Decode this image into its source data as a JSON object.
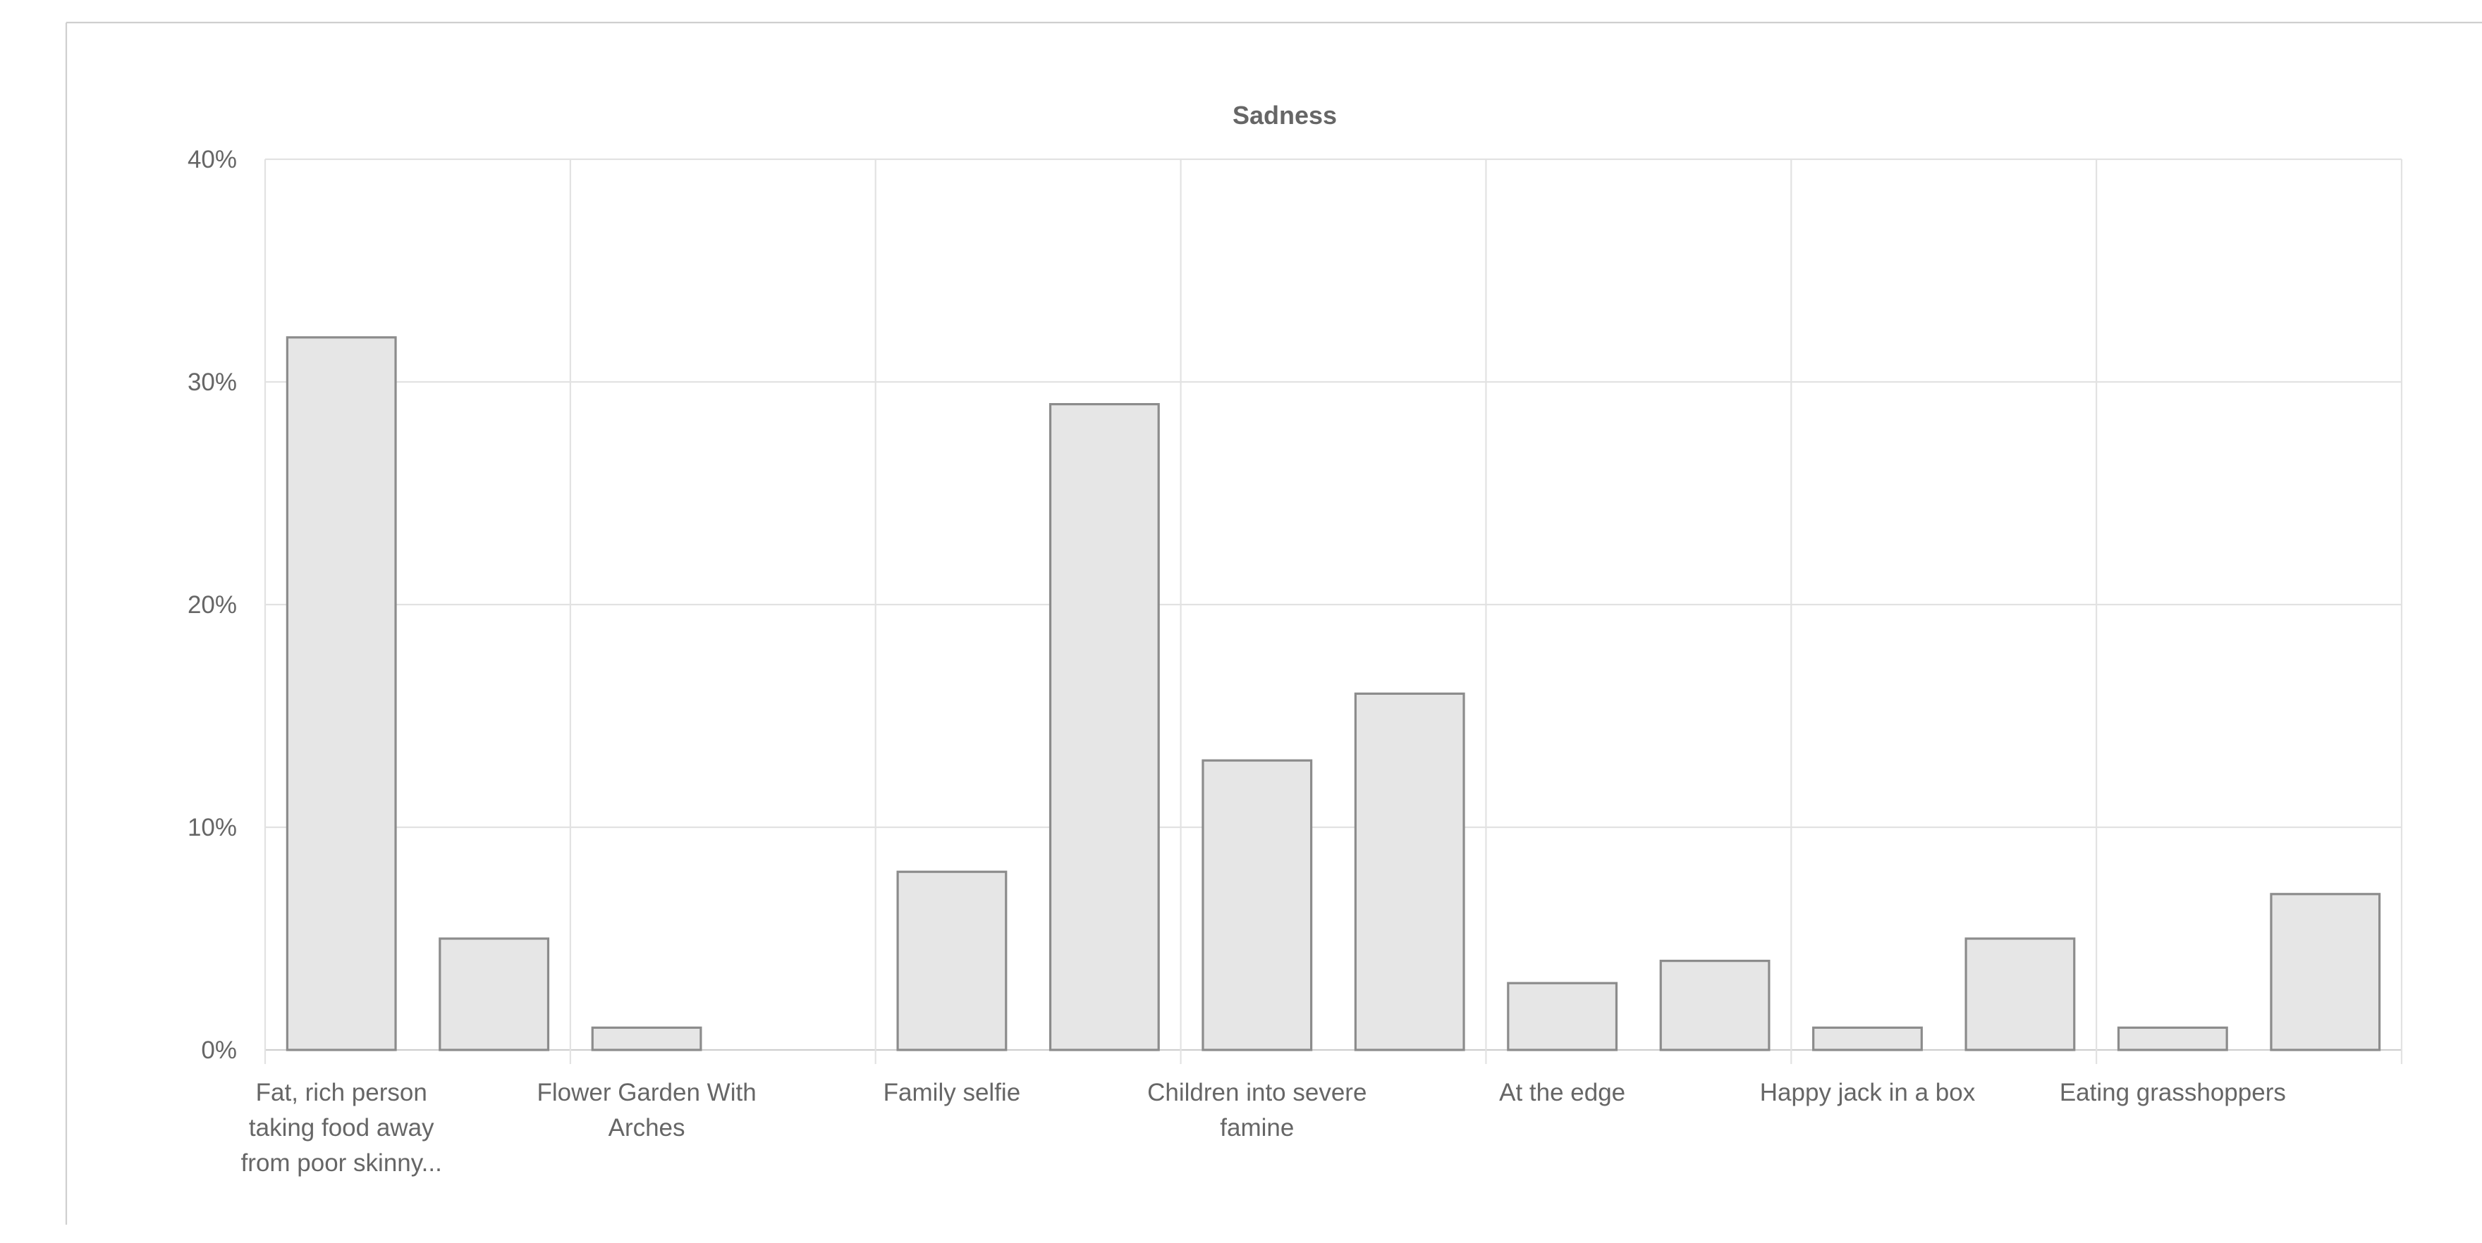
{
  "chart_data": {
    "type": "bar",
    "title": "Sadness",
    "xlabel": "",
    "ylabel": "",
    "ylim": [
      0,
      40
    ],
    "y_ticks": [
      "0%",
      "10%",
      "20%",
      "30%",
      "40%"
    ],
    "y_tick_values": [
      0,
      10,
      20,
      30,
      40
    ],
    "grid": true,
    "legend": "none",
    "bar_fill": "#e6e6e6",
    "bar_stroke": "#8c8c8c",
    "categories": [
      "Fat, rich person taking food away from poor skinny...",
      "",
      "Flower Garden With Arches",
      "",
      "Family selfie",
      "",
      "Children into severe famine",
      "",
      "At the edge",
      "",
      "Happy jack in a box",
      "",
      "Eating grasshoppers",
      ""
    ],
    "x_tick_labels": [
      {
        "index": 0,
        "lines": [
          "Fat, rich person",
          "taking food away",
          "from poor skinny..."
        ]
      },
      {
        "index": 2,
        "lines": [
          "Flower Garden With",
          "Arches"
        ]
      },
      {
        "index": 4,
        "lines": [
          "Family selfie"
        ]
      },
      {
        "index": 6,
        "lines": [
          "Children into severe",
          "famine"
        ]
      },
      {
        "index": 8,
        "lines": [
          "At the edge"
        ]
      },
      {
        "index": 10,
        "lines": [
          "Happy jack in a box"
        ]
      },
      {
        "index": 12,
        "lines": [
          "Eating grasshoppers"
        ]
      }
    ],
    "values": [
      32,
      5,
      1,
      0,
      8,
      29,
      13,
      16,
      3,
      4,
      1,
      5,
      1,
      7
    ]
  }
}
